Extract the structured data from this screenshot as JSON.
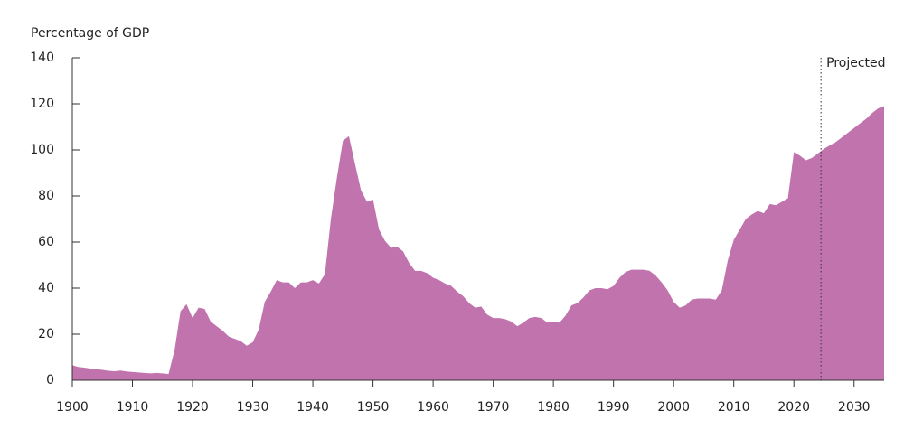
{
  "chart_data": {
    "type": "area",
    "title": "Percentage of GDP",
    "color": "#c073ac",
    "x": [
      1900,
      1901,
      1902,
      1903,
      1904,
      1905,
      1906,
      1907,
      1908,
      1909,
      1910,
      1911,
      1912,
      1913,
      1914,
      1915,
      1916,
      1917,
      1918,
      1919,
      1920,
      1921,
      1922,
      1923,
      1924,
      1925,
      1926,
      1927,
      1928,
      1929,
      1930,
      1931,
      1932,
      1933,
      1934,
      1935,
      1936,
      1937,
      1938,
      1939,
      1940,
      1941,
      1942,
      1943,
      1944,
      1945,
      1946,
      1947,
      1948,
      1949,
      1950,
      1951,
      1952,
      1953,
      1954,
      1955,
      1956,
      1957,
      1958,
      1959,
      1960,
      1961,
      1962,
      1963,
      1964,
      1965,
      1966,
      1967,
      1968,
      1969,
      1970,
      1971,
      1972,
      1973,
      1974,
      1975,
      1976,
      1977,
      1978,
      1979,
      1980,
      1981,
      1982,
      1983,
      1984,
      1985,
      1986,
      1987,
      1988,
      1989,
      1990,
      1991,
      1992,
      1993,
      1994,
      1995,
      1996,
      1997,
      1998,
      1999,
      2000,
      2001,
      2002,
      2003,
      2004,
      2005,
      2006,
      2007,
      2008,
      2009,
      2010,
      2011,
      2012,
      2013,
      2014,
      2015,
      2016,
      2017,
      2018,
      2019,
      2020,
      2021,
      2022,
      2023,
      2024,
      2025,
      2026,
      2027,
      2028,
      2029,
      2030,
      2031,
      2032,
      2033,
      2034,
      2035
    ],
    "values": [
      6.5,
      5.8,
      5.5,
      5.1,
      4.8,
      4.5,
      4.1,
      3.9,
      4.2,
      3.8,
      3.6,
      3.4,
      3.2,
      3.0,
      3.2,
      3.0,
      2.7,
      13,
      30,
      33,
      27,
      31.5,
      31,
      25.5,
      23.5,
      21.5,
      19,
      18,
      17,
      15,
      16.5,
      22,
      34,
      38.5,
      43.5,
      42.5,
      42.5,
      40,
      42.5,
      42.5,
      43.5,
      42,
      46,
      70,
      88,
      104,
      106,
      94,
      82.5,
      77.5,
      78.5,
      65.5,
      60.5,
      57.5,
      58,
      56,
      51,
      47.5,
      47.5,
      46.5,
      44.5,
      43.5,
      42,
      41,
      38.5,
      36.5,
      33.5,
      31.5,
      32,
      28.5,
      27,
      27,
      26.5,
      25.5,
      23.5,
      25,
      27,
      27.5,
      27,
      25,
      25.5,
      25,
      28,
      32.5,
      33.5,
      36,
      39,
      40,
      40,
      39.5,
      41,
      44.5,
      47,
      48,
      48,
      48,
      47.5,
      45.5,
      42.5,
      39,
      34,
      31.5,
      32.5,
      35,
      35.5,
      35.5,
      35.5,
      35,
      39,
      52,
      61,
      65.5,
      70,
      72,
      73.5,
      72.5,
      76.5,
      76,
      77.5,
      79,
      99,
      97.5,
      95.5,
      96.5,
      98.5,
      100.5,
      102,
      103.5,
      105.5,
      107.5,
      109.5,
      111.5,
      113.5,
      116,
      118,
      119
    ],
    "xlim": [
      1900,
      2035
    ],
    "xticks": [
      1900,
      1910,
      1920,
      1930,
      1940,
      1950,
      1960,
      1970,
      1980,
      1990,
      2000,
      2010,
      2020,
      2030
    ],
    "ylim": [
      0,
      140
    ],
    "yticks": [
      0,
      20,
      40,
      60,
      80,
      100,
      120,
      140
    ],
    "annotations": [
      {
        "x": 2024.5,
        "label": "Projected"
      }
    ]
  }
}
